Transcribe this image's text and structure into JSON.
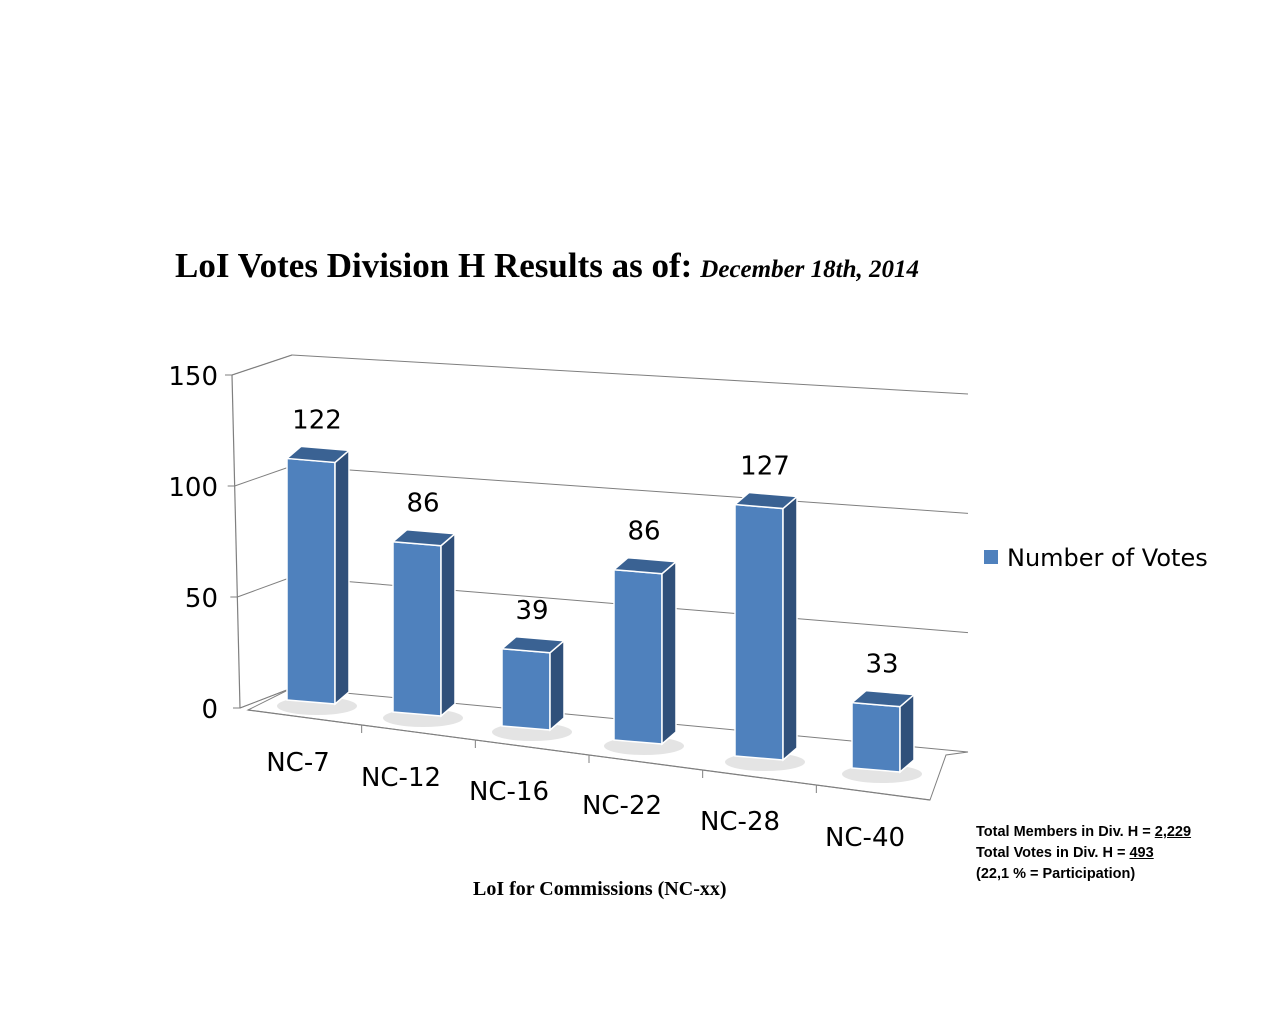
{
  "chart_data": {
    "type": "bar",
    "title": "LoI Votes Division H Results as of:",
    "subtitle": "December 18th, 2014",
    "categories": [
      "NC-7",
      "NC-12",
      "NC-16",
      "NC-22",
      "NC-28",
      "NC-40"
    ],
    "series": [
      {
        "name": "Number of Votes",
        "values": [
          122,
          86,
          39,
          86,
          127,
          33
        ]
      }
    ],
    "data_labels": [
      "122",
      "86",
      "39",
      "86",
      "127",
      "33"
    ],
    "y_ticks": [
      "0",
      "50",
      "100",
      "150"
    ],
    "ylim": [
      0,
      150
    ],
    "xlabel": "LoI for Commissions (NC-xx)",
    "ylabel": "",
    "grid": true,
    "legend_position": "right",
    "style": "3d-column",
    "colors": {
      "bar_front": "#4f81bd",
      "bar_side": "#30507a",
      "bar_top": "#3a6293",
      "grid": "#7f7f7f"
    }
  },
  "notes": {
    "members_label": "Total Members in Div. H = ",
    "members_value": "2,229",
    "votes_label": "Total Votes in Div. H = ",
    "votes_value": "493",
    "participation": "(22,1 % = Participation)"
  }
}
